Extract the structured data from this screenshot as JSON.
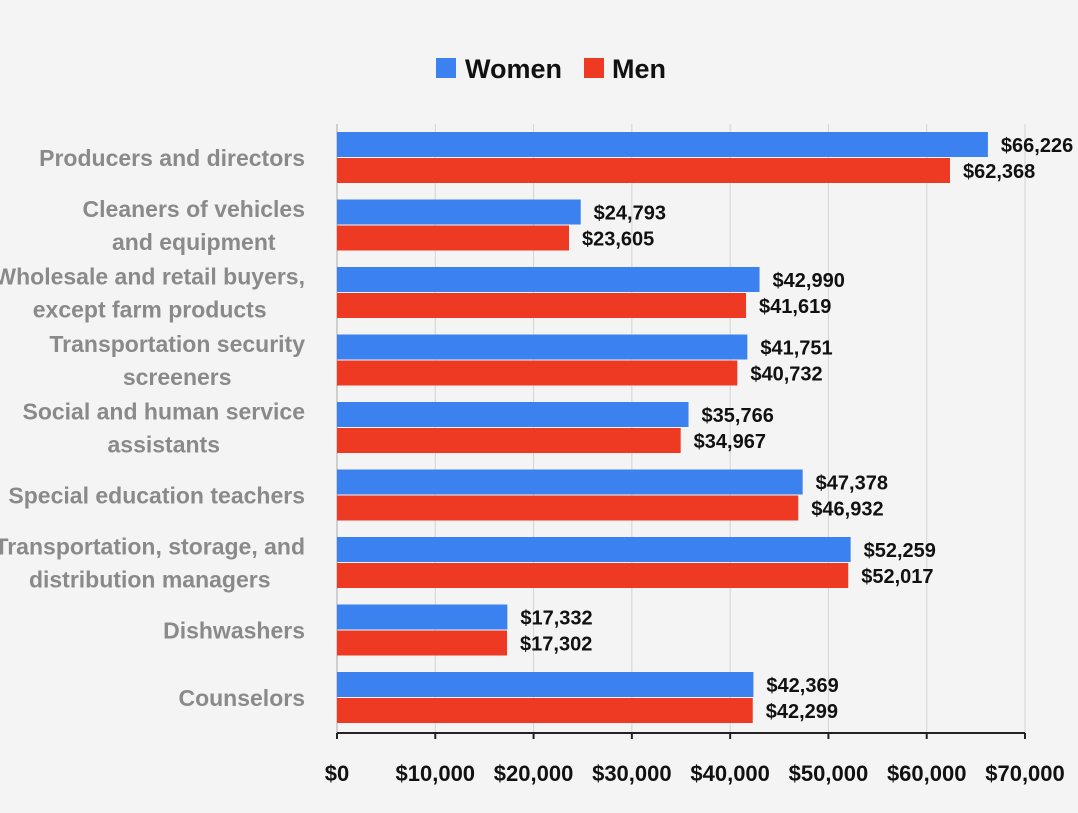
{
  "chart_data": {
    "type": "bar",
    "orientation": "horizontal",
    "categories": [
      [
        "Producers and directors"
      ],
      [
        "Cleaners of vehicles",
        "and equipment"
      ],
      [
        "Wholesale and retail buyers,",
        "except farm products"
      ],
      [
        "Transportation security",
        "screeners"
      ],
      [
        "Social and human service",
        "assistants"
      ],
      [
        "Special education teachers"
      ],
      [
        "Transportation, storage, and",
        "distribution managers"
      ],
      [
        "Dishwashers"
      ],
      [
        "Counselors"
      ]
    ],
    "series": [
      {
        "name": "Women",
        "color": "#3b82f0",
        "values": [
          66226,
          24793,
          42990,
          41751,
          35766,
          47378,
          52259,
          17332,
          42369
        ],
        "labels": [
          "$66,226",
          "$24,793",
          "$42,990",
          "$41,751",
          "$35,766",
          "$47,378",
          "$52,259",
          "$17,332",
          "$42,369"
        ]
      },
      {
        "name": "Men",
        "color": "#ee3a22",
        "values": [
          62368,
          23605,
          41619,
          40732,
          34967,
          46932,
          52017,
          17302,
          42299
        ],
        "labels": [
          "$62,368",
          "$23,605",
          "$41,619",
          "$40,732",
          "$34,967",
          "$46,932",
          "$52,017",
          "$17,302",
          "$42,299"
        ]
      }
    ],
    "xlim": [
      0,
      70000
    ],
    "xticks": [
      0,
      10000,
      20000,
      30000,
      40000,
      50000,
      60000,
      70000
    ],
    "xtick_labels": [
      "$0",
      "$10,000",
      "$20,000",
      "$30,000",
      "$40,000",
      "$50,000",
      "$60,000",
      "$70,000"
    ],
    "grid": true,
    "legend_position": "top-center"
  }
}
